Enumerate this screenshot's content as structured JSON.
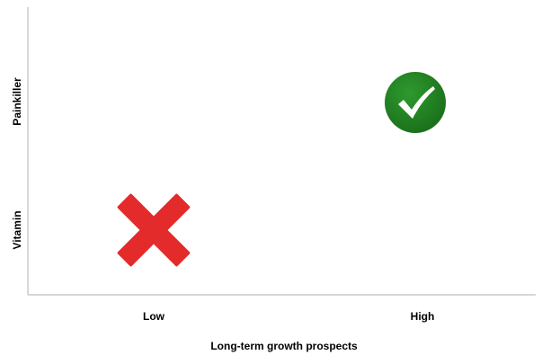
{
  "x_axis": {
    "title": "Long-term growth prospects",
    "ticks": [
      "Low",
      "High"
    ]
  },
  "y_axis": {
    "ticks": [
      "Vitamin",
      "Painkiller"
    ]
  },
  "markers": [
    {
      "x": "Low",
      "y": "Vitamin",
      "symbol": "cross-icon",
      "color": "#e32b2b"
    },
    {
      "x": "High",
      "y": "Painkiller",
      "symbol": "check-circle-icon",
      "color": "#1f7d1f"
    }
  ]
}
